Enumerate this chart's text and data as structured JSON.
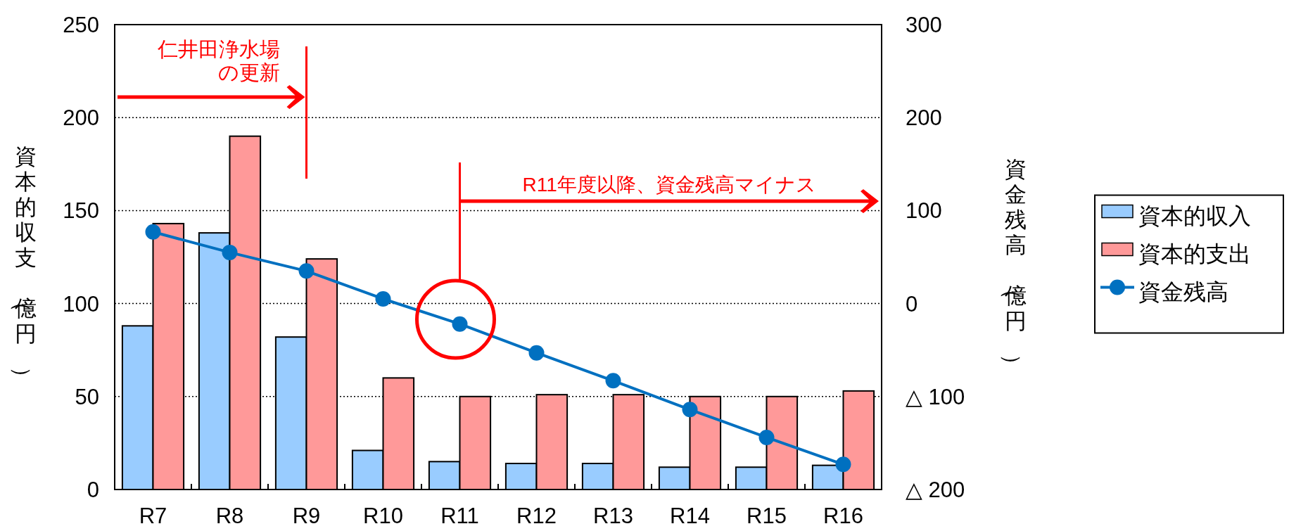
{
  "chart_data": {
    "type": "bar",
    "categories": [
      "R7",
      "R8",
      "R9",
      "R10",
      "R11",
      "R12",
      "R13",
      "R14",
      "R15",
      "R16"
    ],
    "series": [
      {
        "name": "資本的収入",
        "color": "#99ccff",
        "values": [
          88,
          138,
          82,
          21,
          15,
          14,
          14,
          12,
          12,
          13
        ]
      },
      {
        "name": "資本的支出",
        "color": "#ff9999",
        "values": [
          143,
          190,
          124,
          60,
          50,
          51,
          51,
          50,
          50,
          53
        ]
      },
      {
        "name": "資金残高",
        "type": "line",
        "axis": "y2",
        "color": "#0070c0",
        "marker": "circle",
        "values": [
          77,
          55,
          35,
          5,
          -22,
          -53,
          -83,
          -114,
          -144,
          -173
        ]
      }
    ],
    "ylabel": "資本的収支（億円）",
    "y2label": "資金残高（億円）",
    "ylim": [
      0,
      250
    ],
    "yticks": [
      0,
      50,
      100,
      150,
      200,
      250
    ],
    "y2lim": [
      -200,
      300
    ],
    "y2ticks": [
      {
        "value": -200,
        "label": "△ 200"
      },
      {
        "value": -100,
        "label": "△ 100"
      },
      0,
      100,
      200,
      300
    ],
    "grid": "y",
    "legend": "right",
    "annotations": [
      "仁井田浄水場の更新",
      "R11年度以降、資金残高マイナス"
    ]
  }
}
